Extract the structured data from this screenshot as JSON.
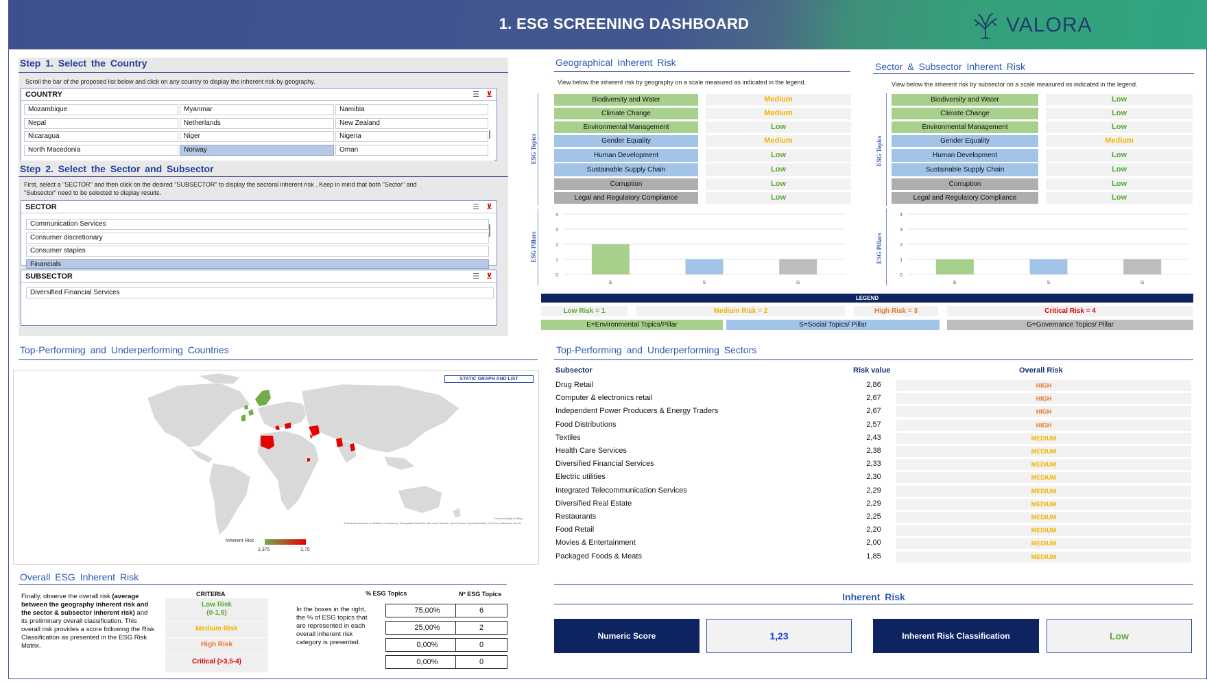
{
  "header": {
    "title": "1. ESG SCREENING DASHBOARD",
    "logo_text": "VALORA"
  },
  "step1": {
    "title": "Step 1. Select the Country",
    "instruction": "Scroll the bar of the proposed list below and click on any country to display the inherent risk by geography.",
    "slicer_label": "COUNTRY",
    "countries": [
      [
        "Mozambique",
        "Myanmar",
        "Namibia"
      ],
      [
        "Nepal",
        "Netherlands",
        "New Zealand"
      ],
      [
        "Nicaragua",
        "Niger",
        "Nigeria"
      ],
      [
        "North Macedonia",
        "Norway",
        "Oman"
      ]
    ],
    "selected_country": "Norway"
  },
  "step2": {
    "title": "Step 2. Select the Sector and Subsector",
    "instruction": "First, select a \"SECTOR\" and then click on the desired \"SUBSECTOR\" to display the sectoral inherent risk . Keep in mind that both \"Sector\" and \"Subsector\" need to be selected to display results.",
    "sector_label": "SECTOR",
    "sectors": [
      "Communication Services",
      "Consumer discretionary",
      "Consumer staples",
      "Financials"
    ],
    "selected_sector": "Financials",
    "subsector_label": "SUBSECTOR",
    "subsectors": [
      "Diversified Financial Services"
    ]
  },
  "geo": {
    "title": "Geographical Inherent Risk",
    "instruction": "View below the inherent risk by geography on a scale measured as indicated in the legend.",
    "topics_axis": "ESG Topics",
    "pillar_axis": "ESG Pillars",
    "rows": [
      {
        "topic": "Biodiversity and Water",
        "risk": "Medium"
      },
      {
        "topic": "Climate Change",
        "risk": "Medium"
      },
      {
        "topic": "Environmental Management",
        "risk": "Low"
      },
      {
        "topic": "Gender Equality",
        "risk": "Medium"
      },
      {
        "topic": "Human Development",
        "risk": "Low"
      },
      {
        "topic": "Sustainable Supply Chain",
        "risk": "Low"
      },
      {
        "topic": "Corruption",
        "risk": "Low"
      },
      {
        "topic": "Legal and Regulatory Compliance",
        "risk": "Low"
      }
    ]
  },
  "sector": {
    "title": "Sector & Subsector Inherent Risk",
    "instruction": "View below the inherent risk by subsector on a scale measured as indicated in the legend.",
    "topics_axis": "ESG Topics",
    "pillar_axis": "ESG Pillars",
    "rows": [
      {
        "topic": "Biodiversity and Water",
        "risk": "Low"
      },
      {
        "topic": "Climate Change",
        "risk": "Low"
      },
      {
        "topic": "Environmental Management",
        "risk": "Low"
      },
      {
        "topic": "Gender Equality",
        "risk": "Medium"
      },
      {
        "topic": "Human Development",
        "risk": "Low"
      },
      {
        "topic": "Sustainable Supply Chain",
        "risk": "Low"
      },
      {
        "topic": "Corruption",
        "risk": "Low"
      },
      {
        "topic": "Legal and Regulatory Compliance",
        "risk": "Low"
      }
    ]
  },
  "chart_data": [
    {
      "type": "bar",
      "categories": [
        "E",
        "S",
        "G"
      ],
      "values": [
        2,
        1,
        1
      ],
      "bar_colors": [
        "#a8d08d",
        "#a2c4e8",
        "#bdbdbd"
      ],
      "ylim": [
        0,
        4
      ],
      "yticks": [
        "0",
        "1",
        "2",
        "3",
        "4"
      ],
      "grid": true
    },
    {
      "type": "bar",
      "categories": [
        "E",
        "S",
        "G"
      ],
      "values": [
        1,
        1,
        1
      ],
      "bar_colors": [
        "#a8d08d",
        "#a2c4e8",
        "#bdbdbd"
      ],
      "ylim": [
        0,
        4
      ],
      "yticks": [
        "0",
        "1",
        "2",
        "3",
        "4"
      ],
      "grid": true
    }
  ],
  "legend": {
    "title": "LEGEND",
    "levels": [
      {
        "label": "Low Risk = 1",
        "color": "#59a832"
      },
      {
        "label": "Medium Risk = 2",
        "color": "#f0b400"
      },
      {
        "label": "High Risk = 3",
        "color": "#e5742a"
      },
      {
        "label": "Critical Risk = 4",
        "color": "#e00000"
      }
    ],
    "pillars": [
      {
        "label": "E=Environmental Topics/Pillar",
        "color": "#a8d08d"
      },
      {
        "label": "S=Social Topics/ Pillar",
        "color": "#a2c4e8"
      },
      {
        "label": "G=Governance Topics/ Pillar",
        "color": "#bdbdbd"
      }
    ]
  },
  "countries_section": {
    "title": "Top-Performing and Underperforming Countries",
    "static_tag": "STATIC GRAPH AND LIST",
    "map_credit": "Con tecnología de Bing",
    "map_attribution": "© Australian Bureau of Statistics, GeoNames, Geospatial Data Edit, Microsoft, Navinfo, Open Places, OpenStreetMap, TomTom, Wikipedia, Zenrin",
    "scale_label": "Inherent Risk",
    "scale_min": "1,375",
    "scale_max": "3,75"
  },
  "sectors_section": {
    "title": "Top-Performing and Underperforming Sectors",
    "col_subsector": "Subsector",
    "col_value": "Risk value",
    "col_overall": "Overall Risk",
    "rows": [
      {
        "name": "Drug Retail",
        "value": "2,86",
        "risk": "HIGH"
      },
      {
        "name": "Computer & electronics retail",
        "value": "2,67",
        "risk": "HIGH"
      },
      {
        "name": "Independent Power Producers & Energy Traders",
        "value": "2,67",
        "risk": "HIGH"
      },
      {
        "name": "Food Distributions",
        "value": "2,57",
        "risk": "HIGH"
      },
      {
        "name": "Textiles",
        "value": "2,43",
        "risk": "MEDIUM"
      },
      {
        "name": "Health Care Services",
        "value": "2,38",
        "risk": "MEDIUM"
      },
      {
        "name": "Diversified Financial Services",
        "value": "2,33",
        "risk": "MEDIUM"
      },
      {
        "name": "Electric utilities",
        "value": "2,30",
        "risk": "MEDIUM"
      },
      {
        "name": "Integrated Telecommunication Services",
        "value": "2,29",
        "risk": "MEDIUM"
      },
      {
        "name": "Diversified Real Estate",
        "value": "2,29",
        "risk": "MEDIUM"
      },
      {
        "name": "Restaurants",
        "value": "2,25",
        "risk": "MEDIUM"
      },
      {
        "name": "Food Retail",
        "value": "2,20",
        "risk": "MEDIUM"
      },
      {
        "name": "Movies & Entertainment",
        "value": "2,00",
        "risk": "MEDIUM"
      },
      {
        "name": "Packaged Foods & Meats",
        "value": "1,85",
        "risk": "MEDIUM"
      }
    ]
  },
  "overall": {
    "title": "Overall ESG Inherent Risk",
    "intro_1": "Finally, observe the overall risk ",
    "intro_bold": "(average between the geography inherent risk and the sector & subsector inherent risk)",
    "intro_2": " and its preliminary overall classification. This overall risk provides a score following the Risk Classification as presented in the ESG Risk Matrix.",
    "criteria_header": "CRITERIA",
    "criteria": [
      {
        "line1": "Low Risk",
        "line2": "(0-1,5)",
        "color": "#59a832"
      },
      {
        "line1": "Medium Risk",
        "line2": "",
        "color": "#f0b400"
      },
      {
        "line1": "High Risk",
        "line2": "",
        "color": "#e5742a"
      },
      {
        "line1": "Critical (>3,5-4)",
        "line2": "",
        "color": "#e00000"
      }
    ],
    "pct_note": "In the boxes in the right, the % of ESG topics that are represented in each overall inherent risk category is presented.",
    "pct_header": "% ESG Topics",
    "count_header": "Nº ESG Topics",
    "pct_values": [
      "75,00%",
      "25,00%",
      "0,00%",
      "0,00%"
    ],
    "count_values": [
      "6",
      "2",
      "0",
      "0"
    ]
  },
  "inherent": {
    "title": "Inherent Risk",
    "numeric_label": "Numeric Score",
    "numeric_value": "1,23",
    "class_label": "Inherent Risk Classification",
    "class_value": "Low"
  }
}
